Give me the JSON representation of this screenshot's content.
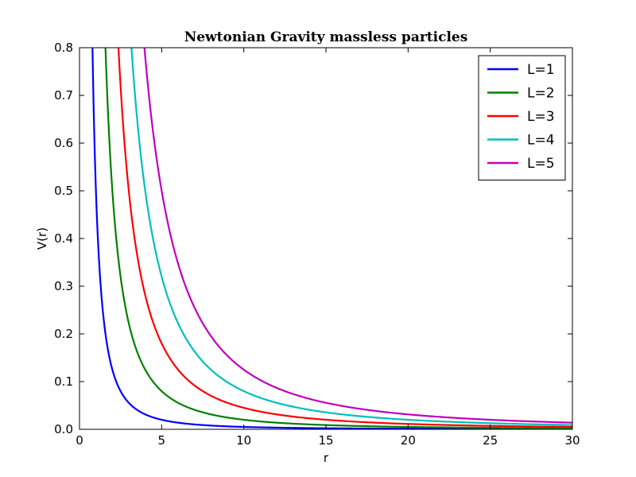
{
  "chart_data": {
    "type": "line",
    "title": "Newtonian Gravity massless particles",
    "xlabel": "r",
    "ylabel": "V(r)",
    "xlim": [
      0,
      30
    ],
    "ylim": [
      0,
      0.8
    ],
    "xticks": [
      0,
      5,
      10,
      15,
      20,
      25,
      30
    ],
    "yticks": [
      0.0,
      0.1,
      0.2,
      0.3,
      0.4,
      0.5,
      0.6,
      0.7,
      0.8
    ],
    "xtick_labels": [
      "0",
      "5",
      "10",
      "15",
      "20",
      "25",
      "30"
    ],
    "ytick_labels": [
      "0.0",
      "0.1",
      "0.2",
      "0.3",
      "0.4",
      "0.5",
      "0.6",
      "0.7",
      "0.8"
    ],
    "grid": false,
    "legend_position": "top-right",
    "function": "V(r) = L^2 / (2 r^2)",
    "series": [
      {
        "name": "L=1",
        "L": 1,
        "color": "#0000ff"
      },
      {
        "name": "L=2",
        "L": 2,
        "color": "#008000"
      },
      {
        "name": "L=3",
        "L": 3,
        "color": "#ff0000"
      },
      {
        "name": "L=4",
        "L": 4,
        "color": "#00bfbf"
      },
      {
        "name": "L=5",
        "L": 5,
        "color": "#bf00bf"
      }
    ]
  }
}
